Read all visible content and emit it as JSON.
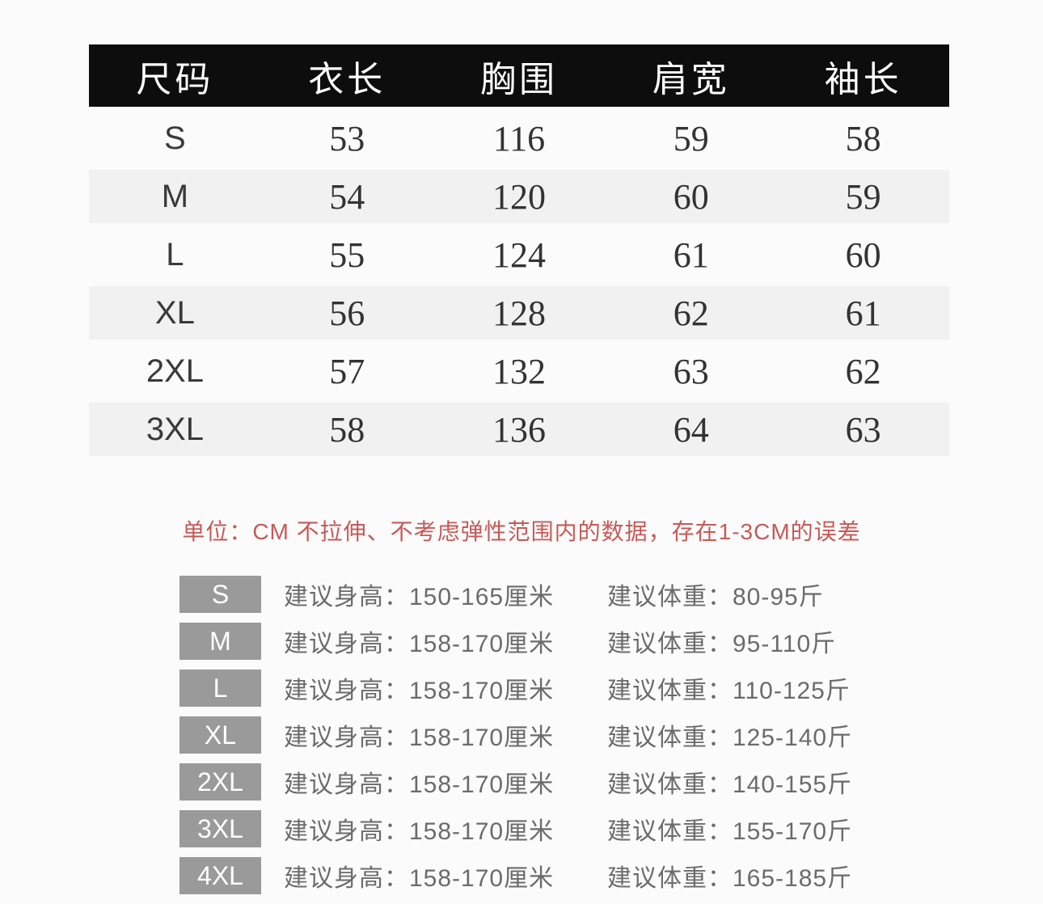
{
  "page": {
    "background": "#fbfbfb",
    "header_bg": "#0d0d0d",
    "header_text_color": "#ffffff",
    "stripe_color": "#f1f1f2",
    "note_color": "#c65a58",
    "badge_color": "#9a9a9a",
    "rec_text_color": "#6b6b6b"
  },
  "size_table": {
    "headers": [
      "尺码",
      "衣长",
      "胸围",
      "肩宽",
      "袖长"
    ],
    "rows": [
      {
        "size": "S",
        "values": [
          "53",
          "116",
          "59",
          "58"
        ],
        "striped": false
      },
      {
        "size": "M",
        "values": [
          "54",
          "120",
          "60",
          "59"
        ],
        "striped": true
      },
      {
        "size": "L",
        "values": [
          "55",
          "124",
          "61",
          "60"
        ],
        "striped": false
      },
      {
        "size": "XL",
        "values": [
          "56",
          "128",
          "62",
          "61"
        ],
        "striped": true
      },
      {
        "size": "2XL",
        "values": [
          "57",
          "132",
          "63",
          "62"
        ],
        "striped": false
      },
      {
        "size": "3XL",
        "values": [
          "58",
          "136",
          "64",
          "63"
        ],
        "striped": true
      }
    ]
  },
  "unit_note": {
    "text": "单位：CM 不拉伸、不考虑弹性范围内的数据，存在1-3CM的误差"
  },
  "recommendations": {
    "height_label": "建议身高：",
    "weight_label": "建议体重：",
    "rows": [
      {
        "size": "S",
        "height": "150-165厘米",
        "weight": "80-95斤"
      },
      {
        "size": "M",
        "height": "158-170厘米",
        "weight": "95-110斤"
      },
      {
        "size": "L",
        "height": "158-170厘米",
        "weight": "110-125斤"
      },
      {
        "size": "XL",
        "height": "158-170厘米",
        "weight": "125-140斤"
      },
      {
        "size": "2XL",
        "height": "158-170厘米",
        "weight": "140-155斤"
      },
      {
        "size": "3XL",
        "height": "158-170厘米",
        "weight": "155-170斤"
      },
      {
        "size": "4XL",
        "height": "158-170厘米",
        "weight": "165-185斤"
      }
    ]
  },
  "chart_data": [
    {
      "type": "table",
      "title": "服装尺码表 (单位: CM)",
      "columns": [
        "尺码",
        "衣长",
        "胸围",
        "肩宽",
        "袖长"
      ],
      "rows": [
        [
          "S",
          53,
          116,
          59,
          58
        ],
        [
          "M",
          54,
          120,
          60,
          59
        ],
        [
          "L",
          55,
          124,
          61,
          60
        ],
        [
          "XL",
          56,
          128,
          62,
          61
        ],
        [
          "2XL",
          57,
          132,
          63,
          62
        ],
        [
          "3XL",
          58,
          136,
          64,
          63
        ]
      ],
      "note": "单位：CM 不拉伸、不考虑弹性范围内的数据，存在1-3CM的误差"
    },
    {
      "type": "table",
      "title": "建议身高体重对照",
      "columns": [
        "尺码",
        "建议身高",
        "建议体重"
      ],
      "rows": [
        [
          "S",
          "150-165厘米",
          "80-95斤"
        ],
        [
          "M",
          "158-170厘米",
          "95-110斤"
        ],
        [
          "L",
          "158-170厘米",
          "110-125斤"
        ],
        [
          "XL",
          "158-170厘米",
          "125-140斤"
        ],
        [
          "2XL",
          "158-170厘米",
          "140-155斤"
        ],
        [
          "3XL",
          "158-170厘米",
          "155-170斤"
        ],
        [
          "4XL",
          "158-170厘米",
          "165-185斤"
        ]
      ]
    }
  ]
}
